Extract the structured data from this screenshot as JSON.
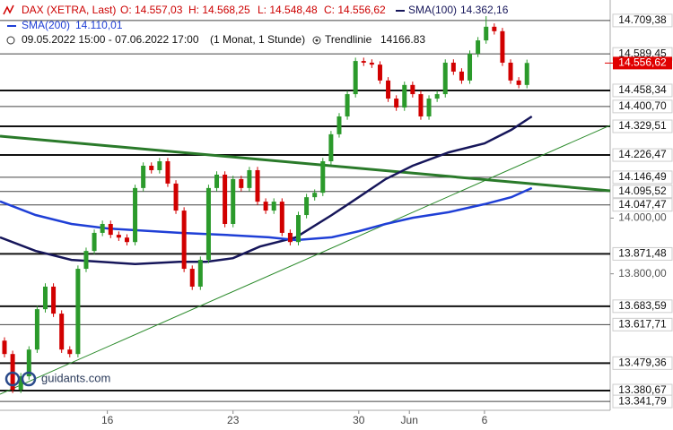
{
  "header": {
    "range": "09.05.2022 15:00 - 07.06.2022 17:00",
    "interval": "(1 Monat, 1 Stunde)"
  },
  "logo": "guidants.com",
  "chart_data": {
    "type": "candlestick",
    "title": "DAX (XETRA, Last)",
    "ohlc_labels": [
      "O: 14.557,03",
      "H: 14.568,25",
      "L: 14.548,48",
      "C: 14.556,62"
    ],
    "up_color": "#2b9a2b",
    "down_color": "#d10000",
    "xlim": [
      -0.55,
      74.2
    ],
    "ylim": [
      13310,
      14783
    ],
    "open": [
      13560,
      13512,
      13384,
      13432,
      13528,
      13673,
      13754,
      13657,
      13528,
      13512,
      13818,
      13882,
      13947,
      13979,
      13940,
      13930,
      13914,
      14108,
      14188,
      14172,
      14204,
      14124,
      14027,
      13818,
      13754,
      13850,
      14108,
      14156,
      13979,
      14140,
      14108,
      14172,
      14059,
      14027,
      14059,
      13947,
      13914,
      14011,
      14075,
      14091,
      14204,
      14301,
      14365,
      14445,
      14564,
      14558,
      14551,
      14494,
      14429,
      14397,
      14478,
      14445,
      14365,
      14429,
      14445,
      14558,
      14526,
      14494,
      14590,
      14638,
      14687,
      14671,
      14558,
      14494,
      14478
    ],
    "high": [
      13572,
      13524,
      13444,
      13540,
      13685,
      13766,
      13766,
      13669,
      13540,
      13830,
      13894,
      13959,
      13991,
      13991,
      13952,
      13942,
      14120,
      14200,
      14200,
      14216,
      14216,
      14136,
      14039,
      13830,
      13862,
      14120,
      14168,
      14168,
      14152,
      14152,
      14184,
      14184,
      14071,
      14071,
      14071,
      13959,
      14023,
      14087,
      14103,
      14216,
      14313,
      14377,
      14457,
      14576,
      14576,
      14570,
      14563,
      14506,
      14441,
      14490,
      14490,
      14457,
      14441,
      14457,
      14570,
      14570,
      14538,
      14602,
      14650,
      14725,
      14699,
      14683,
      14570,
      14506,
      14569
    ],
    "low": [
      13500,
      13372,
      13372,
      13420,
      13516,
      13661,
      13645,
      13516,
      13500,
      13500,
      13806,
      13870,
      13935,
      13928,
      13918,
      13902,
      13902,
      14096,
      14160,
      14160,
      14112,
      14015,
      13806,
      13742,
      13742,
      13838,
      14096,
      13967,
      13967,
      14096,
      14096,
      14047,
      14015,
      14015,
      13935,
      13902,
      13902,
      13999,
      14063,
      14079,
      14192,
      14289,
      14353,
      14433,
      14546,
      14539,
      14482,
      14417,
      14385,
      14385,
      14433,
      14353,
      14353,
      14417,
      14433,
      14514,
      14482,
      14482,
      14578,
      14626,
      14659,
      14546,
      14482,
      14466,
      14466
    ],
    "close": [
      13512,
      13384,
      13432,
      13528,
      13673,
      13754,
      13657,
      13528,
      13512,
      13818,
      13882,
      13947,
      13979,
      13940,
      13930,
      13914,
      14108,
      14188,
      14172,
      14204,
      14124,
      14027,
      13818,
      13754,
      13850,
      14108,
      14156,
      13979,
      14140,
      14108,
      14172,
      14059,
      14027,
      14059,
      13947,
      13914,
      14011,
      14075,
      14091,
      14204,
      14301,
      14365,
      14445,
      14564,
      14558,
      14551,
      14494,
      14429,
      14397,
      14478,
      14445,
      14365,
      14429,
      14445,
      14558,
      14526,
      14494,
      14590,
      14638,
      14687,
      14671,
      14558,
      14494,
      14478,
      14557
    ],
    "series": [
      {
        "name": "SMA(100)",
        "value_label": "14.362,16",
        "color": "#16165a",
        "x": [
          -0.55,
          3.8,
          8.2,
          16,
          21.4,
          24.7,
          28,
          31.3,
          35.7,
          40.1,
          43.4,
          46.7,
          50,
          54.4,
          58.8,
          62.1,
          64.6
        ],
        "values": [
          13931,
          13882,
          13850,
          13835,
          13843,
          13843,
          13856,
          13898,
          13931,
          14011,
          14075,
          14140,
          14188,
          14236,
          14268,
          14317,
          14365
        ]
      },
      {
        "name": "SMA(200)",
        "value_label": "14.110,01",
        "color": "#1f3fd6",
        "x": [
          -0.55,
          3.8,
          8.2,
          12.6,
          21.4,
          26.9,
          32.4,
          35.7,
          40.1,
          43.4,
          46.7,
          50,
          54.4,
          58.8,
          62.1,
          64.6
        ],
        "values": [
          14060,
          14011,
          13979,
          13963,
          13947,
          13940,
          13931,
          13921,
          13931,
          13953,
          13979,
          14001,
          14021,
          14050,
          14075,
          14108
        ]
      }
    ],
    "trendlines": [
      {
        "name": "Trendlinie",
        "value_label": "14166.83",
        "color": "#2a7a2a",
        "width": 3,
        "x": [
          -0.55,
          74.2
        ],
        "values": [
          14294,
          14098
        ]
      },
      {
        "color": "#2a8a2a",
        "width": 1,
        "x": [
          -0.55,
          74.2
        ],
        "values": [
          13368,
          14333
        ]
      }
    ],
    "levels": [
      {
        "value": 14709.38,
        "label": "14.709,38",
        "style": "thin"
      },
      {
        "value": 14589.45,
        "label": "14.589,45",
        "style": "thin"
      },
      {
        "value": 14458.34,
        "label": "14.458,34",
        "style": "thick"
      },
      {
        "value": 14400.7,
        "label": "14.400,70",
        "style": "thin"
      },
      {
        "value": 14329.51,
        "label": "14.329,51",
        "style": "thick"
      },
      {
        "value": 14226.47,
        "label": "14.226,47",
        "style": "thick"
      },
      {
        "value": 14146.49,
        "label": "14.146,49",
        "style": "thin"
      },
      {
        "value": 14095.52,
        "label": "14.095,52",
        "style": "thin"
      },
      {
        "value": 14047.47,
        "label": "14.047,47",
        "style": "thin"
      },
      {
        "value": 13871.48,
        "label": "13.871,48",
        "style": "thick"
      },
      {
        "value": 13683.59,
        "label": "13.683,59",
        "style": "thick"
      },
      {
        "value": 13617.71,
        "label": "13.617,71",
        "style": "thin"
      },
      {
        "value": 13479.36,
        "label": "13.479,36",
        "style": "thick"
      },
      {
        "value": 13380.67,
        "label": "13.380,67",
        "style": "thick"
      },
      {
        "value": 13341.79,
        "label": "13.341,79",
        "style": "thin"
      }
    ],
    "last": {
      "value": 14556.62,
      "label": "14.556,62",
      "color": "#e00000"
    },
    "yticks": [
      {
        "value": 14000,
        "label": "14.000,00"
      },
      {
        "value": 13800,
        "label": "13.800,00"
      }
    ],
    "xticks": [
      {
        "value": 12.6,
        "label": "16"
      },
      {
        "value": 28,
        "label": "23"
      },
      {
        "value": 43.4,
        "label": "30"
      },
      {
        "value": 49.6,
        "label": "Jun"
      },
      {
        "value": 58.8,
        "label": "6"
      }
    ]
  }
}
